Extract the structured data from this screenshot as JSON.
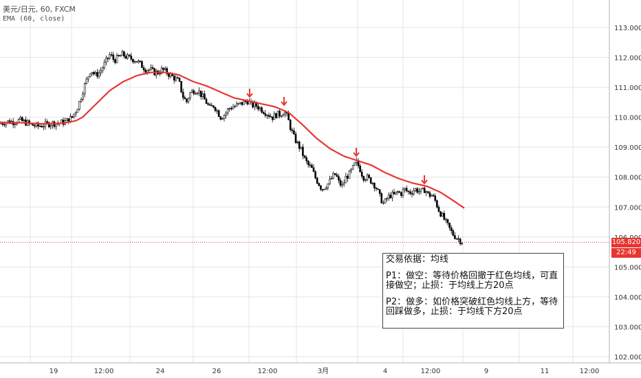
{
  "legend": {
    "line1": "美元/日元, 60, FXCM",
    "line2": "EMA (60, close)"
  },
  "colors": {
    "up": "#26a69a",
    "down": "#000000",
    "ema": "#e8352f",
    "arrow": "#e8352f",
    "price_tag": "#e8352f",
    "time_tag": "#e8352f",
    "grid": "#e2e4e8",
    "price_line": "#e8352f"
  },
  "price_tags": {
    "last_price": "105.820",
    "countdown": "22:49"
  },
  "annotation": {
    "title": "交易依据：均线",
    "p1": "P1：做空：等待价格回撤于红色均线，可直接做空；止损：于均线上方20点",
    "p2": "P2：做多：如价格突破红色均线上方，等待回踩做多，止损：于均线下方20点"
  },
  "chart_data": {
    "type": "candlestick",
    "symbol": "美元/日元",
    "interval": "60",
    "source": "FXCM",
    "indicator": "EMA (60, close)",
    "ylim": [
      101.75,
      113.9
    ],
    "y_ticks": [
      "102.000",
      "103.000",
      "104.000",
      "105.000",
      "106.000",
      "107.000",
      "108.000",
      "109.000",
      "110.000",
      "111.000",
      "112.000",
      "113.000"
    ],
    "x_ticks": [
      "19",
      "12:00",
      "24",
      "26",
      "12:00",
      "3月",
      "4",
      "12:00",
      "9",
      "11",
      "12:00"
    ],
    "last_price": 105.82,
    "price_path": [
      [
        0,
        109.8
      ],
      [
        10,
        109.85
      ],
      [
        20,
        109.85
      ],
      [
        28,
        109.9
      ],
      [
        35,
        109.85
      ],
      [
        45,
        109.75
      ],
      [
        55,
        109.7
      ],
      [
        65,
        109.75
      ],
      [
        75,
        109.8
      ],
      [
        85,
        109.8
      ],
      [
        95,
        109.85
      ],
      [
        105,
        110.0
      ],
      [
        112,
        110.3
      ],
      [
        117,
        110.6
      ],
      [
        122,
        111.0
      ],
      [
        127,
        111.3
      ],
      [
        132,
        111.6
      ],
      [
        138,
        111.4
      ],
      [
        145,
        111.5
      ],
      [
        150,
        111.7
      ],
      [
        155,
        111.9
      ],
      [
        160,
        112.1
      ],
      [
        166,
        111.9
      ],
      [
        172,
        112.0
      ],
      [
        178,
        112.1
      ],
      [
        185,
        112.0
      ],
      [
        192,
        111.95
      ],
      [
        198,
        111.9
      ],
      [
        205,
        111.75
      ],
      [
        212,
        111.6
      ],
      [
        218,
        111.6
      ],
      [
        224,
        111.5
      ],
      [
        230,
        111.5
      ],
      [
        236,
        111.6
      ],
      [
        242,
        111.5
      ],
      [
        248,
        111.4
      ],
      [
        254,
        111.3
      ],
      [
        260,
        111.2
      ],
      [
        266,
        110.7
      ],
      [
        271,
        110.5
      ],
      [
        276,
        110.8
      ],
      [
        282,
        110.9
      ],
      [
        288,
        110.9
      ],
      [
        294,
        110.7
      ],
      [
        300,
        110.5
      ],
      [
        305,
        110.3
      ],
      [
        311,
        110.4
      ],
      [
        316,
        110.2
      ],
      [
        321,
        110.0
      ],
      [
        327,
        110.1
      ],
      [
        333,
        110.3
      ],
      [
        339,
        110.35
      ],
      [
        345,
        110.4
      ],
      [
        350,
        110.45
      ],
      [
        355,
        110.5
      ],
      [
        360,
        110.55
      ],
      [
        366,
        110.4
      ],
      [
        372,
        110.4
      ],
      [
        378,
        110.3
      ],
      [
        384,
        110.2
      ],
      [
        390,
        110.1
      ],
      [
        396,
        110.0
      ],
      [
        402,
        110.1
      ],
      [
        408,
        110.1
      ],
      [
        413,
        110.2
      ],
      [
        418,
        110.0
      ],
      [
        423,
        109.6
      ],
      [
        428,
        109.3
      ],
      [
        433,
        109.1
      ],
      [
        438,
        108.9
      ],
      [
        443,
        108.6
      ],
      [
        448,
        108.4
      ],
      [
        453,
        108.3
      ],
      [
        458,
        108.0
      ],
      [
        463,
        107.8
      ],
      [
        468,
        107.6
      ],
      [
        473,
        107.7
      ],
      [
        478,
        107.8
      ],
      [
        483,
        108.0
      ],
      [
        488,
        108.1
      ],
      [
        493,
        107.8
      ],
      [
        498,
        107.7
      ],
      [
        503,
        108.0
      ],
      [
        508,
        108.1
      ],
      [
        513,
        108.3
      ],
      [
        518,
        108.5
      ],
      [
        523,
        108.3
      ],
      [
        528,
        108.0
      ],
      [
        533,
        108.0
      ],
      [
        538,
        107.9
      ],
      [
        543,
        107.8
      ],
      [
        548,
        107.6
      ],
      [
        553,
        107.3
      ],
      [
        558,
        107.1
      ],
      [
        563,
        107.3
      ],
      [
        568,
        107.4
      ],
      [
        573,
        107.4
      ],
      [
        578,
        107.5
      ],
      [
        583,
        107.45
      ],
      [
        588,
        107.6
      ],
      [
        593,
        107.5
      ],
      [
        598,
        107.5
      ],
      [
        603,
        107.6
      ],
      [
        608,
        107.55
      ],
      [
        613,
        107.5
      ],
      [
        618,
        107.6
      ],
      [
        623,
        107.4
      ],
      [
        628,
        107.4
      ],
      [
        633,
        107.2
      ],
      [
        638,
        106.9
      ],
      [
        643,
        106.7
      ],
      [
        648,
        106.5
      ],
      [
        653,
        106.3
      ],
      [
        658,
        106.1
      ],
      [
        663,
        106.0
      ],
      [
        668,
        105.9
      ],
      [
        674,
        105.82
      ]
    ],
    "ema_path": [
      [
        0,
        109.82
      ],
      [
        30,
        109.82
      ],
      [
        60,
        109.78
      ],
      [
        90,
        109.8
      ],
      [
        110,
        109.88
      ],
      [
        120,
        110.0
      ],
      [
        140,
        110.45
      ],
      [
        160,
        110.9
      ],
      [
        180,
        111.2
      ],
      [
        200,
        111.4
      ],
      [
        220,
        111.5
      ],
      [
        240,
        111.5
      ],
      [
        260,
        111.42
      ],
      [
        280,
        111.2
      ],
      [
        300,
        111.05
      ],
      [
        320,
        110.85
      ],
      [
        340,
        110.65
      ],
      [
        360,
        110.55
      ],
      [
        380,
        110.45
      ],
      [
        400,
        110.35
      ],
      [
        420,
        110.15
      ],
      [
        440,
        109.75
      ],
      [
        460,
        109.3
      ],
      [
        480,
        108.95
      ],
      [
        500,
        108.7
      ],
      [
        520,
        108.55
      ],
      [
        540,
        108.4
      ],
      [
        560,
        108.15
      ],
      [
        580,
        107.95
      ],
      [
        600,
        107.8
      ],
      [
        620,
        107.7
      ],
      [
        640,
        107.5
      ],
      [
        660,
        107.2
      ],
      [
        676,
        106.95
      ]
    ],
    "arrow_x": [
      363,
      413,
      518,
      617
    ]
  }
}
